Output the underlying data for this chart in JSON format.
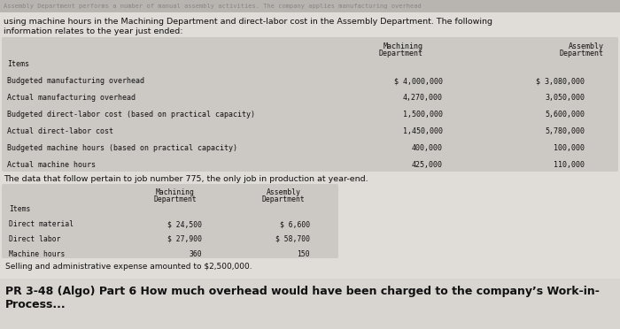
{
  "bg_color_top": "#c8c4c0",
  "bg_color_main": "#e0dcd8",
  "bg_color_footer": "#e8e4e0",
  "table_bg": "#d4d0cc",
  "top_faded_text": "Assembly Department performs a number of manual assembly activities. The company applies manufacturing overhead",
  "header_line1": "using machine hours in the Machining Department and direct-labor cost in the Assembly Department. The following",
  "header_line2": "information relates to the year just ended:",
  "table1_items": [
    "Items",
    "Budgeted manufacturing overhead",
    "Actual manufacturing overhead",
    "Budgeted direct-labor cost (based on practical capacity)",
    "Actual direct-labor cost",
    "Budgeted machine hours (based on practical capacity)",
    "Actual machine hours"
  ],
  "table1_machining": [
    "",
    "$ 4,000,000",
    "4,270,000",
    "1,500,000",
    "1,450,000",
    "400,000",
    "425,000"
  ],
  "table1_assembly": [
    "",
    "$ 3,080,000",
    "3,050,000",
    "5,600,000",
    "5,780,000",
    "100,000",
    "110,000"
  ],
  "mid_text": "The data that follow pertain to job number 775, the only job in production at year-end.",
  "table2_items": [
    "Items",
    "Direct material",
    "Direct labor",
    "Machine hours"
  ],
  "table2_machining": [
    "",
    "$ 24,500",
    "$ 27,900",
    "360"
  ],
  "table2_assembly": [
    "",
    "$ 6,600",
    "$ 58,700",
    "150"
  ],
  "selling_text": "Selling and administrative expense amounted to $2,500,000.",
  "footer_text": "PR 3-48 (Algo) Part 6 How much overhead would have been charged to the company’s Work-in-\nProcess..."
}
